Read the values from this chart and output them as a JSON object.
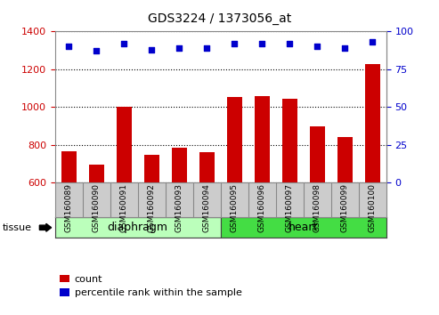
{
  "title": "GDS3224 / 1373056_at",
  "samples": [
    "GSM160089",
    "GSM160090",
    "GSM160091",
    "GSM160092",
    "GSM160093",
    "GSM160094",
    "GSM160095",
    "GSM160096",
    "GSM160097",
    "GSM160098",
    "GSM160099",
    "GSM160100"
  ],
  "counts": [
    765,
    695,
    1000,
    748,
    785,
    762,
    1055,
    1060,
    1045,
    898,
    843,
    1228
  ],
  "percentiles": [
    90,
    87,
    92,
    88,
    89,
    89,
    92,
    92,
    92,
    90,
    89,
    93
  ],
  "ylim_left": [
    600,
    1400
  ],
  "ylim_right": [
    0,
    100
  ],
  "yticks_left": [
    600,
    800,
    1000,
    1200,
    1400
  ],
  "yticks_right": [
    0,
    25,
    50,
    75,
    100
  ],
  "groups": [
    {
      "label": "diaphragm",
      "start": 0,
      "end": 6,
      "color": "#bbffbb"
    },
    {
      "label": "heart",
      "start": 6,
      "end": 12,
      "color": "#44dd44"
    }
  ],
  "bar_color": "#cc0000",
  "dot_color": "#0000cc",
  "bar_width": 0.55,
  "background_color": "#ffffff",
  "tick_label_color_left": "#cc0000",
  "tick_label_color_right": "#0000cc",
  "tissue_label": "tissue",
  "legend_count_label": "count",
  "legend_percentile_label": "percentile rank within the sample",
  "xticklabel_bg": "#cccccc"
}
